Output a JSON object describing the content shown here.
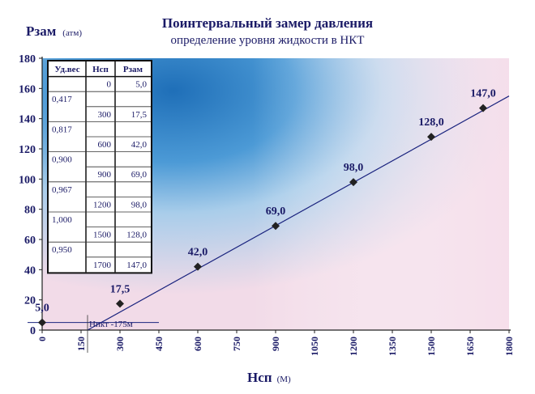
{
  "chart_data": {
    "type": "line",
    "title": "Поинтервальный замер давления",
    "subtitle": "определение уровня жидкости в НКТ",
    "ylabel": "Рзам",
    "ylabel_unit": "(атм)",
    "xlabel": "Нсп",
    "xlabel_unit": "(М)",
    "xlim": [
      0,
      1800
    ],
    "ylim": [
      0,
      180
    ],
    "x_ticks": [
      0,
      150,
      300,
      450,
      600,
      750,
      900,
      1050,
      1200,
      1350,
      1500,
      1650,
      1800
    ],
    "y_ticks": [
      0,
      20,
      40,
      60,
      80,
      100,
      120,
      140,
      160,
      180
    ],
    "grid": false,
    "points": {
      "x": [
        0,
        300,
        600,
        900,
        1200,
        1500,
        1700
      ],
      "y": [
        5.0,
        17.5,
        42.0,
        69.0,
        98.0,
        128.0,
        147.0
      ],
      "labels": [
        "5,0",
        "17,5",
        "42,0",
        "69,0",
        "98,0",
        "128,0",
        "147,0"
      ]
    },
    "trendline": {
      "x": [
        175,
        1800
      ],
      "y": [
        0,
        155
      ]
    },
    "annotation": {
      "text": "Нпкт -175м",
      "x": 175
    },
    "table": {
      "headers": [
        "Уд.вес",
        "Нсп",
        "Рзам"
      ],
      "rows": [
        [
          "",
          "0",
          "5,0"
        ],
        [
          "0,417",
          "",
          ""
        ],
        [
          "",
          "300",
          "17,5"
        ],
        [
          "0,817",
          "",
          ""
        ],
        [
          "",
          "600",
          "42,0"
        ],
        [
          "0,900",
          "",
          ""
        ],
        [
          "",
          "900",
          "69,0"
        ],
        [
          "0,967",
          "",
          ""
        ],
        [
          "",
          "1200",
          "98,0"
        ],
        [
          "1,000",
          "",
          ""
        ],
        [
          "",
          "1500",
          "128,0"
        ],
        [
          "0,950",
          "",
          ""
        ],
        [
          "",
          "1700",
          "147,0"
        ]
      ]
    },
    "colors": {
      "text": "#1a1a66",
      "line": "#1a237e",
      "marker": "#222222",
      "bg_blue": "#2f7fc4",
      "bg_pink": "#f3dce8"
    }
  }
}
